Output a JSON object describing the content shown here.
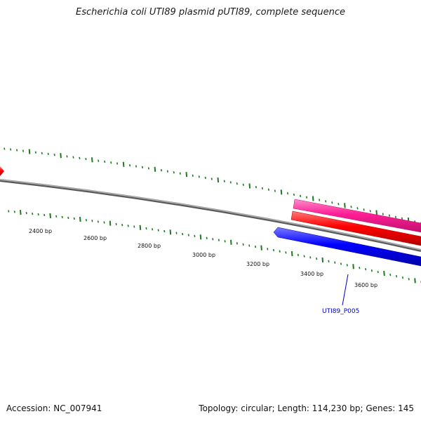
{
  "title": "Escherichia coli UTI89 plasmid pUTI89, complete sequence",
  "footer": {
    "accession": "Accession: NC_007941",
    "summary": "Topology: circular; Length: 114,230 bp; Genes: 145"
  },
  "map": {
    "scale_labels": [
      "2400 bp",
      "2600 bp",
      "2800 bp",
      "3000 bp",
      "3200 bp",
      "3400 bp",
      "3600 bp"
    ],
    "gene_label": "UTI89_P005",
    "colors": {
      "backbone": "#8a8a8a",
      "ticks": "#1f7a1f",
      "feature_pink": "#ff1e96",
      "feature_red": "#ff0000",
      "feature_blue": "#0000ff",
      "label_blue": "#0000cc"
    }
  }
}
